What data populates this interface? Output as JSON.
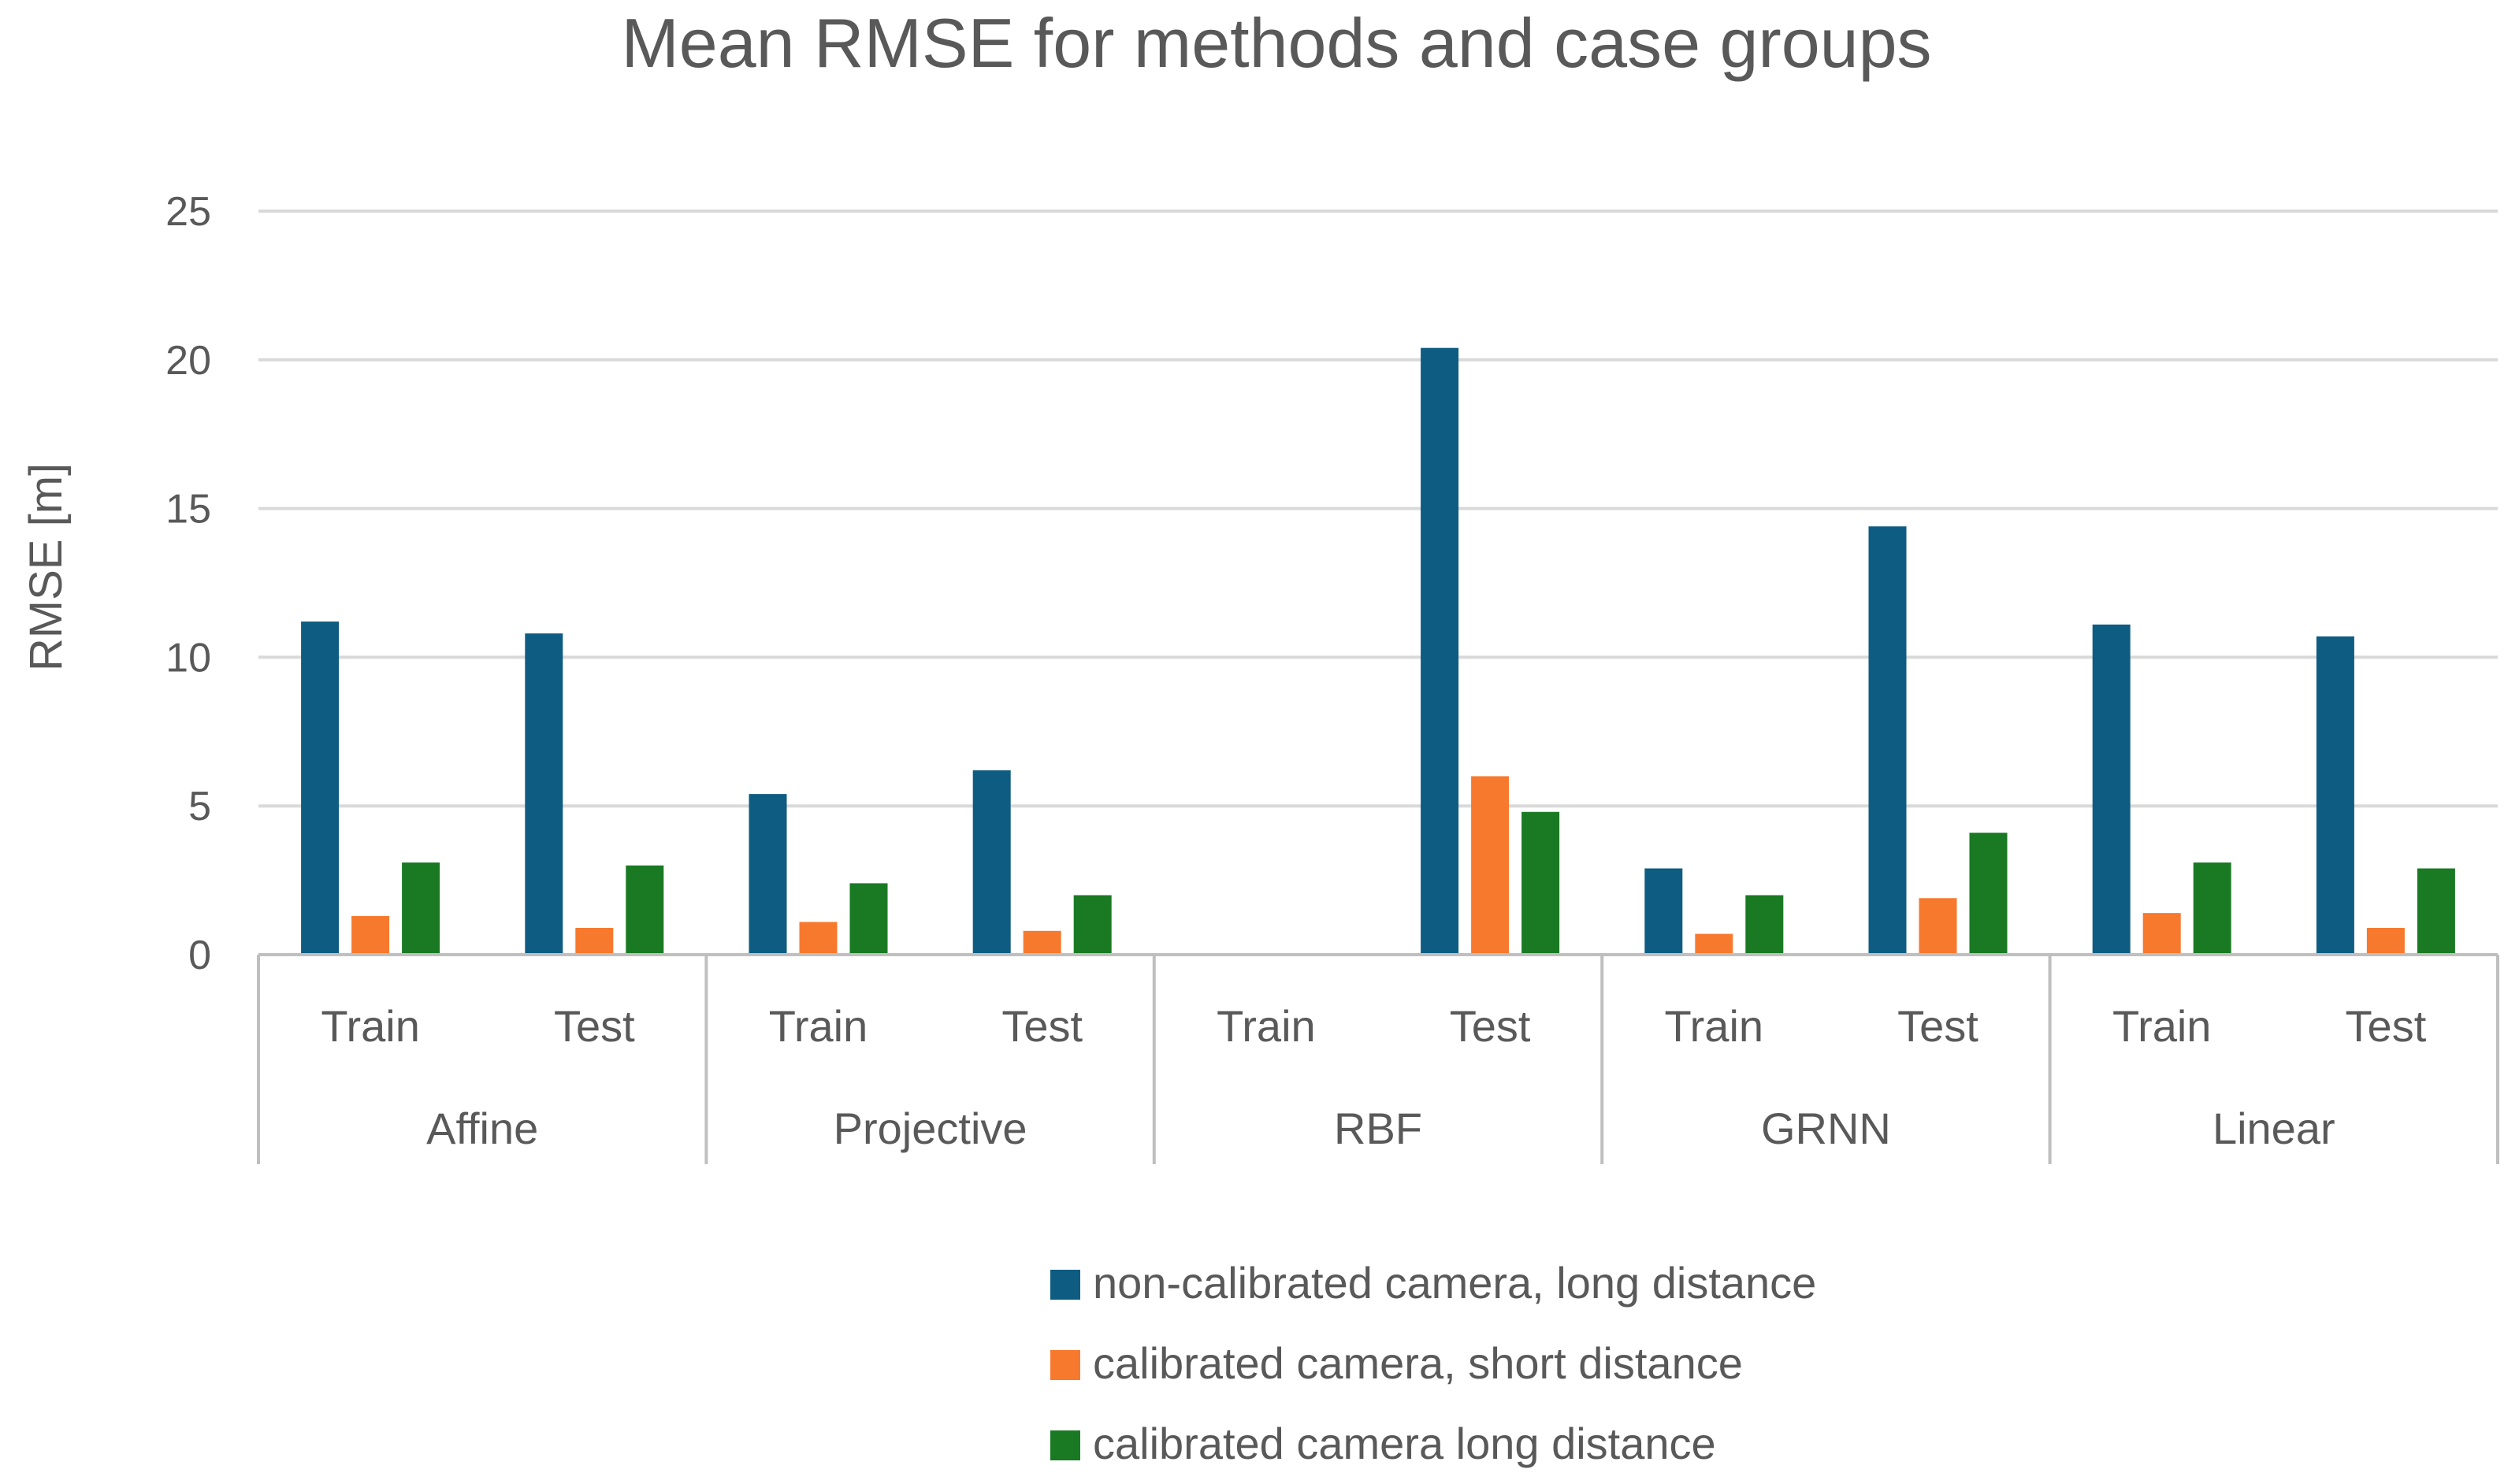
{
  "chart_data": {
    "type": "bar",
    "title": "Mean RMSE for methods and case groups",
    "xlabel": "",
    "ylabel": "RMSE [m]",
    "ylim": [
      0,
      25
    ],
    "yticks": [
      0,
      5,
      10,
      15,
      20,
      25
    ],
    "grid": true,
    "legend_position": "bottom",
    "groups": [
      {
        "name": "Affine",
        "cases": [
          "Train",
          "Test"
        ]
      },
      {
        "name": "Projective",
        "cases": [
          "Train",
          "Test"
        ]
      },
      {
        "name": "RBF",
        "cases": [
          "Train",
          "Test"
        ]
      },
      {
        "name": "GRNN",
        "cases": [
          "Train",
          "Test"
        ]
      },
      {
        "name": "Linear",
        "cases": [
          "Train",
          "Test"
        ]
      }
    ],
    "categories": [
      "Affine Train",
      "Affine Test",
      "Projective Train",
      "Projective Test",
      "RBF Train",
      "RBF Test",
      "GRNN Train",
      "GRNN Test",
      "Linear Train",
      "Linear Test"
    ],
    "series": [
      {
        "name": "non-calibrated camera, long distance",
        "color": "#0f5c82",
        "values": [
          11.2,
          10.8,
          5.4,
          6.2,
          null,
          20.4,
          2.9,
          14.4,
          11.1,
          10.7
        ]
      },
      {
        "name": "calibrated camera, short distance",
        "color": "#f7792e",
        "values": [
          1.3,
          0.9,
          1.1,
          0.8,
          null,
          6.0,
          0.7,
          1.9,
          1.4,
          0.9
        ]
      },
      {
        "name": "calibrated camera long distance",
        "color": "#1a7a23",
        "values": [
          3.1,
          3.0,
          2.4,
          2.0,
          null,
          4.8,
          2.0,
          4.1,
          3.1,
          2.9
        ]
      }
    ]
  }
}
